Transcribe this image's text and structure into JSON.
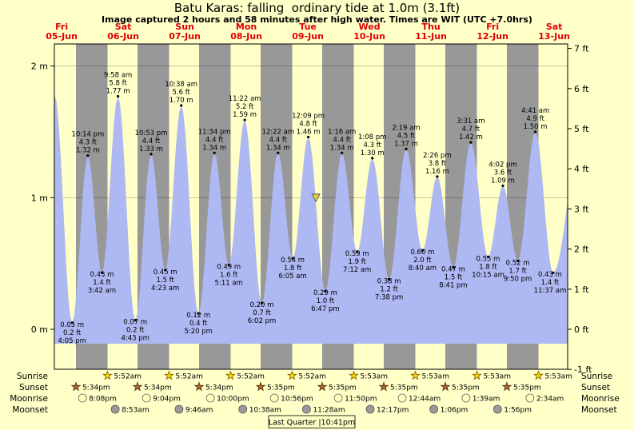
{
  "chart_data": {
    "type": "area",
    "title": "Batu Karas: falling  ordinary tide at 1.0m (3.1ft)",
    "subtitle": "Image captured 2 hours and 58 minutes after high water. Times are WIT (UTC +7.0hrs)",
    "grid": true,
    "legend": false,
    "ylim_ft": [
      -1,
      7
    ],
    "colors": {
      "background": "#ffffc8",
      "night": "#989898",
      "tide": "#aeb8f2",
      "day_label": "#e00000",
      "marker": "#d8ce3e"
    },
    "days": [
      {
        "dow": "Fri",
        "date": "05-Jun"
      },
      {
        "dow": "Sat",
        "date": "06-Jun"
      },
      {
        "dow": "Sun",
        "date": "07-Jun"
      },
      {
        "dow": "Mon",
        "date": "08-Jun"
      },
      {
        "dow": "Tue",
        "date": "09-Jun"
      },
      {
        "dow": "Wed",
        "date": "10-Jun"
      },
      {
        "dow": "Thu",
        "date": "11-Jun"
      },
      {
        "dow": "Fri",
        "date": "12-Jun"
      },
      {
        "dow": "Sat",
        "date": "13-Jun"
      }
    ],
    "left_axis": {
      "unit": "m",
      "ticks": [
        {
          "m": 0,
          "label": "0 m"
        },
        {
          "m": 1,
          "label": "1 m"
        },
        {
          "m": 2,
          "label": "2 m"
        }
      ]
    },
    "right_axis": {
      "unit": "ft",
      "ticks": [
        {
          "ft": -1,
          "label": "-1 ft"
        },
        {
          "ft": 0,
          "label": "0 ft"
        },
        {
          "ft": 1,
          "label": "1 ft"
        },
        {
          "ft": 2,
          "label": "2 ft"
        },
        {
          "ft": 3,
          "label": "3 ft"
        },
        {
          "ft": 4,
          "label": "4 ft"
        },
        {
          "ft": 5,
          "label": "5 ft"
        },
        {
          "ft": 6,
          "label": "6 ft"
        },
        {
          "ft": 7,
          "label": "7 ft"
        }
      ]
    },
    "extremes": [
      {
        "t": 0.3854,
        "m": 1.78,
        "kind": "high",
        "lines": null
      },
      {
        "t": 0.6701,
        "m": 0.05,
        "kind": "low",
        "lines": [
          "0.05 m",
          "0.2 ft",
          "4:05 pm"
        ]
      },
      {
        "t": 0.9264,
        "m": 1.32,
        "kind": "high",
        "lines": [
          "10:14 pm",
          "4.3 ft",
          "1.32 m"
        ]
      },
      {
        "t": 1.1542,
        "m": 0.43,
        "kind": "low",
        "lines": [
          "0.43 m",
          "1.4 ft",
          "3:42 am"
        ]
      },
      {
        "t": 1.4153,
        "m": 1.77,
        "kind": "high",
        "lines": [
          "9:58 am",
          "5.8 ft",
          "1.77 m"
        ]
      },
      {
        "t": 1.6965,
        "m": 0.07,
        "kind": "low",
        "lines": [
          "0.07 m",
          "0.2 ft",
          "4:43 pm"
        ]
      },
      {
        "t": 1.9535,
        "m": 1.33,
        "kind": "high",
        "lines": [
          "10:53 pm",
          "4.4 ft",
          "1.33 m"
        ]
      },
      {
        "t": 2.1826,
        "m": 0.45,
        "kind": "low",
        "lines": [
          "0.45 m",
          "1.5 ft",
          "4:23 am"
        ]
      },
      {
        "t": 2.4431,
        "m": 1.7,
        "kind": "high",
        "lines": [
          "10:38 am",
          "5.6 ft",
          "1.70 m"
        ]
      },
      {
        "t": 2.7222,
        "m": 0.12,
        "kind": "low",
        "lines": [
          "0.12 m",
          "0.4 ft",
          "5:20 pm"
        ]
      },
      {
        "t": 2.9819,
        "m": 1.34,
        "kind": "high",
        "lines": [
          "11:34 pm",
          "4.4 ft",
          "1.34 m"
        ]
      },
      {
        "t": 3.216,
        "m": 0.49,
        "kind": "low",
        "lines": [
          "0.49 m",
          "1.6 ft",
          "5:11 am"
        ]
      },
      {
        "t": 3.4736,
        "m": 1.59,
        "kind": "high",
        "lines": [
          "11:22 am",
          "5.2 ft",
          "1.59 m"
        ]
      },
      {
        "t": 3.7514,
        "m": 0.2,
        "kind": "low",
        "lines": [
          "0.20 m",
          "0.7 ft",
          "6:02 pm"
        ]
      },
      {
        "t": 4.0153,
        "m": 1.34,
        "kind": "high",
        "lines": [
          "12:22 am",
          "4.4 ft",
          "1.34 m"
        ]
      },
      {
        "t": 4.2535,
        "m": 0.54,
        "kind": "low",
        "lines": [
          "0.54 m",
          "1.8 ft",
          "6:05 am"
        ]
      },
      {
        "t": 4.5063,
        "m": 1.46,
        "kind": "high",
        "lines": [
          "12:09 pm",
          "4.8 ft",
          "1.46 m"
        ]
      },
      {
        "t": 4.7826,
        "m": 0.29,
        "kind": "low",
        "lines": [
          "0.29 m",
          "1.0 ft",
          "6:47 pm"
        ]
      },
      {
        "t": 5.0528,
        "m": 1.34,
        "kind": "high",
        "lines": [
          "1:16 am",
          "4.4 ft",
          "1.34 m"
        ]
      },
      {
        "t": 5.3,
        "m": 0.59,
        "kind": "low",
        "lines": [
          "0.59 m",
          "1.9 ft",
          "7:12 am"
        ]
      },
      {
        "t": 5.5472,
        "m": 1.3,
        "kind": "high",
        "lines": [
          "1:08 pm",
          "4.3 ft",
          "1.30 m"
        ]
      },
      {
        "t": 5.8181,
        "m": 0.38,
        "kind": "low",
        "lines": [
          "0.38 m",
          "1.2 ft",
          "7:38 pm"
        ]
      },
      {
        "t": 6.0965,
        "m": 1.37,
        "kind": "high",
        "lines": [
          "2:19 am",
          "4.5 ft",
          "1.37 m"
        ]
      },
      {
        "t": 6.3611,
        "m": 0.6,
        "kind": "low",
        "lines": [
          "0.60 m",
          "2.0 ft",
          "8:40 am"
        ]
      },
      {
        "t": 6.6014,
        "m": 1.16,
        "kind": "high",
        "lines": [
          "2:26 pm",
          "3.8 ft",
          "1.16 m"
        ]
      },
      {
        "t": 6.8618,
        "m": 0.47,
        "kind": "low",
        "lines": [
          "0.47 m",
          "1.5 ft",
          "8:41 pm"
        ]
      },
      {
        "t": 7.1465,
        "m": 1.42,
        "kind": "high",
        "lines": [
          "3:31 am",
          "4.7 ft",
          "1.42 m"
        ]
      },
      {
        "t": 7.4271,
        "m": 0.55,
        "kind": "low",
        "lines": [
          "0.55 m",
          "1.8 ft",
          "10:15 am"
        ]
      },
      {
        "t": 7.6681,
        "m": 1.09,
        "kind": "high",
        "lines": [
          "4:02 pm",
          "3.6 ft",
          "1.09 m"
        ]
      },
      {
        "t": 7.9097,
        "m": 0.52,
        "kind": "low",
        "lines": [
          "0.52 m",
          "1.7 ft",
          "9:50 pm"
        ]
      },
      {
        "t": 8.1951,
        "m": 1.5,
        "kind": "high",
        "lines": [
          "4:41 am",
          "4.9 ft",
          "1.50 m"
        ]
      },
      {
        "t": 8.484,
        "m": 0.43,
        "kind": "low",
        "lines": [
          "0.43 m",
          "1.4 ft",
          "11:37 am"
        ]
      },
      {
        "t": 8.95,
        "m": 1.5,
        "kind": "high",
        "lines": null
      }
    ],
    "current_marker": {
      "t": 4.6299,
      "m": 1.0
    },
    "sun_moon": {
      "moon_phase": "Last Quarter |10:41pm",
      "rows": [
        {
          "key": "sunrise",
          "label": "Sunrise",
          "icon": "star",
          "icon_fill": "#ffd700",
          "icon_stroke": "#7a5c00",
          "items": [
            {
              "t": 1.2444,
              "time": "5:52am"
            },
            {
              "t": 2.2444,
              "time": "5:52am"
            },
            {
              "t": 3.2444,
              "time": "5:52am"
            },
            {
              "t": 4.2444,
              "time": "5:52am"
            },
            {
              "t": 5.2451,
              "time": "5:53am"
            },
            {
              "t": 6.2451,
              "time": "5:53am"
            },
            {
              "t": 7.2451,
              "time": "5:53am"
            },
            {
              "t": 8.2451,
              "time": "5:53am"
            }
          ]
        },
        {
          "key": "sunset",
          "label": "Sunset",
          "icon": "star",
          "icon_fill": "#a8682f",
          "icon_stroke": "#4d2e0a",
          "items": [
            {
              "t": 0.7319,
              "time": "5:34pm"
            },
            {
              "t": 1.7319,
              "time": "5:34pm"
            },
            {
              "t": 2.7319,
              "time": "5:34pm"
            },
            {
              "t": 3.7326,
              "time": "5:35pm"
            },
            {
              "t": 4.7326,
              "time": "5:35pm"
            },
            {
              "t": 5.7326,
              "time": "5:35pm"
            },
            {
              "t": 6.7326,
              "time": "5:35pm"
            },
            {
              "t": 7.7326,
              "time": "5:35pm"
            }
          ]
        },
        {
          "key": "moonrise",
          "label": "Moonrise",
          "icon": "circle",
          "icon_fill": "#ffffc0",
          "icon_stroke": "#666666",
          "items": [
            {
              "t": 0.8389,
              "time": "8:08pm"
            },
            {
              "t": 1.8778,
              "time": "9:04pm"
            },
            {
              "t": 2.9167,
              "time": "10:00pm"
            },
            {
              "t": 3.9556,
              "time": "10:56pm"
            },
            {
              "t": 4.9931,
              "time": "11:50pm"
            },
            {
              "t": 6.0306,
              "time": "12:44am"
            },
            {
              "t": 7.0688,
              "time": "1:39am"
            },
            {
              "t": 8.1069,
              "time": "2:34am"
            }
          ]
        },
        {
          "key": "moonset",
          "label": "Moonset",
          "icon": "circle",
          "icon_fill": "#9a9a9a",
          "icon_stroke": "#555555",
          "items": [
            {
              "t": 1.3701,
              "time": "8:53am"
            },
            {
              "t": 2.4069,
              "time": "9:46am"
            },
            {
              "t": 3.4431,
              "time": "10:38am"
            },
            {
              "t": 4.4778,
              "time": "11:28am"
            },
            {
              "t": 5.5118,
              "time": "12:17pm"
            },
            {
              "t": 6.5458,
              "time": "1:06pm"
            },
            {
              "t": 7.5806,
              "time": "1:56pm"
            }
          ]
        }
      ]
    }
  }
}
